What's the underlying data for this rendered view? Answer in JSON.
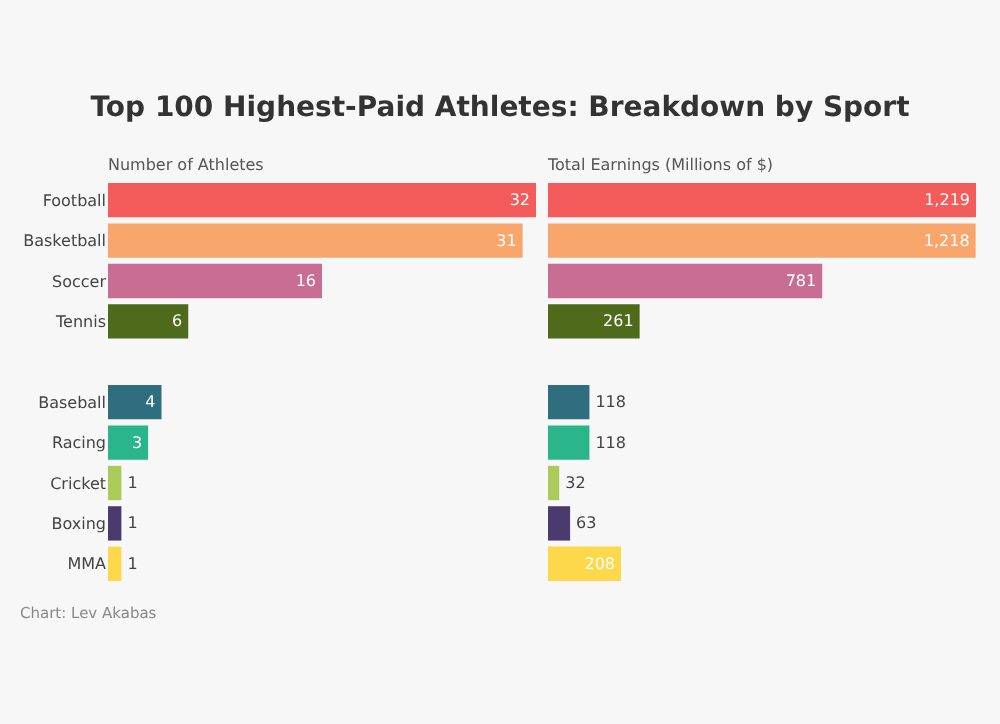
{
  "chart_data": [
    {
      "type": "bar",
      "orientation": "horizontal",
      "title": "Top 100 Highest-Paid Athletes: Breakdown by Sport",
      "xlabel": "Number of Athletes",
      "categories": [
        "Football",
        "Basketball",
        "Soccer",
        "Tennis",
        null,
        "Baseball",
        "Racing",
        "Cricket",
        "Boxing",
        "MMA"
      ],
      "values": [
        32,
        31,
        16,
        6,
        null,
        4,
        3,
        1,
        1,
        1
      ],
      "colors": [
        "#f45b5b",
        "#f9a66c",
        "#c86e94",
        "#4d6b1a",
        "#3a6ea5",
        "#2f6e7e",
        "#2bb58a",
        "#aacb5a",
        "#4a3a6e",
        "#fcd84a"
      ],
      "data_labels": true,
      "grid": false,
      "legend": false,
      "tick_labels": "y"
    },
    {
      "type": "bar",
      "orientation": "horizontal",
      "xlabel": "Total Earnings (Millions of $)",
      "categories": [
        null,
        null,
        null,
        null,
        null,
        null,
        null,
        null,
        null,
        null
      ],
      "values": [
        1219,
        1218,
        781,
        261,
        null,
        118,
        118,
        32,
        63,
        208
      ],
      "value_labels": [
        "1,219",
        "1,218",
        "781",
        "261",
        null,
        "118",
        "118",
        "32",
        "63",
        "208"
      ],
      "colors": [
        "#f45b5b",
        "#f9a66c",
        "#c86e94",
        "#4d6b1a",
        "#3a6ea5",
        "#2f6e7e",
        "#2bb58a",
        "#aacb5a",
        "#4a3a6e",
        "#fcd84a"
      ],
      "grid": false,
      "legend": false,
      "annotations": [
        "Chart: Lev Akabas"
      ]
    }
  ]
}
